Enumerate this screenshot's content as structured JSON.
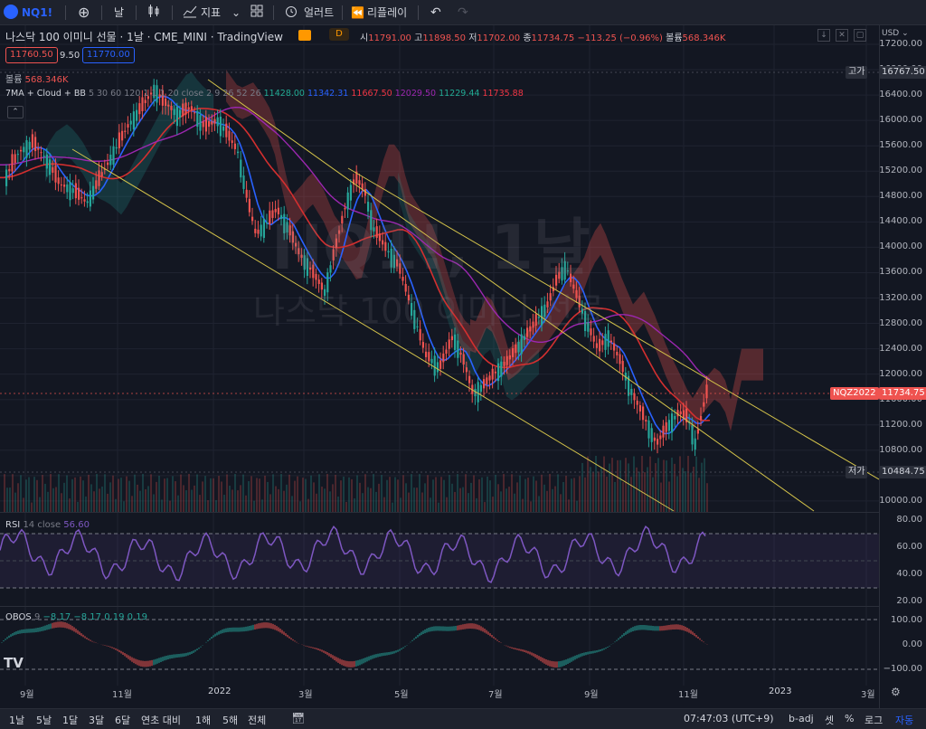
{
  "toolbar": {
    "symbol": "NQ1!",
    "interval": "날",
    "indicators": "지표",
    "alert": "얼러트",
    "replay": "리플레이"
  },
  "legend": {
    "title": "나스닥 100 이미니 선물 · 1날 · CME_MINI · TradingView",
    "badge": "D",
    "o_label": "시",
    "o": "11791.00",
    "h_label": "고",
    "h": "11898.50",
    "l_label": "저",
    "l": "11702.00",
    "c_label": "종",
    "c": "11734.75",
    "chg": "−113.25 (−0.96%)",
    "vol_label": "볼륨",
    "vol": "568.346K",
    "bid": "11760.50",
    "spread": "9.50",
    "ask": "11770.00",
    "volume_line_label": "볼륨",
    "volume_line_value": "568.346K",
    "study_title": "7MA + Cloud + BB",
    "study_params": "5 30 60 120 1 1 1 20 close 2 9 26 52 26",
    "study_values": [
      {
        "v": "11428.00",
        "color": "#22ab94"
      },
      {
        "v": "11342.31",
        "color": "#2962ff"
      },
      {
        "v": "11667.50",
        "color": "#f23645"
      },
      {
        "v": "12029.50",
        "color": "#9c27b0"
      },
      {
        "v": "11229.44",
        "color": "#22ab94"
      },
      {
        "v": "11735.88",
        "color": "#f23645"
      }
    ]
  },
  "watermark": {
    "line1": "NQ1!, 1날",
    "line2": "나스닥 100 이미니 선물"
  },
  "yaxis": {
    "currency": "USD",
    "ticks": [
      "17200.00",
      "16800.00",
      "16400.00",
      "16000.00",
      "15600.00",
      "15200.00",
      "14800.00",
      "14400.00",
      "14000.00",
      "13600.00",
      "13200.00",
      "12800.00",
      "12400.00",
      "12000.00",
      "11600.00",
      "11200.00",
      "10800.00",
      "10400.00",
      "10000.00"
    ],
    "high_label": "고가",
    "high_value": "16767.50",
    "low_label": "저가",
    "low_value": "10484.75",
    "last_symbol": "NQZ2022",
    "last_value": "11734.75"
  },
  "rsi": {
    "label": "RSI",
    "params": "14 close",
    "value": "56.60",
    "ticks": [
      "80.00",
      "60.00",
      "40.00",
      "20.00"
    ]
  },
  "obos": {
    "label": "OBOS",
    "params": "9",
    "v1": "−8.17",
    "v2": "−8.17",
    "v3": "0.19",
    "v4": "0.19",
    "ticks": [
      "100.00",
      "0.00",
      "−100.00"
    ]
  },
  "xaxis": {
    "ticks": [
      "9월",
      "11월",
      "2022",
      "3월",
      "5월",
      "7월",
      "9월",
      "11월",
      "2023",
      "3월"
    ]
  },
  "bottombar": {
    "ranges": [
      "1날",
      "5날",
      "1달",
      "3달",
      "6달",
      "연초 대비",
      "1해",
      "5해",
      "전체"
    ],
    "time": "07:47:03 (UTC+9)",
    "badj": "b-adj",
    "settle": "셋",
    "pct": "%",
    "log": "로그",
    "auto": "자동"
  },
  "colors": {
    "up": "#26a69a",
    "down": "#ef5350",
    "rsi": "#7e57c2",
    "channel": "#d4c34a",
    "accent": "#2962ff"
  }
}
